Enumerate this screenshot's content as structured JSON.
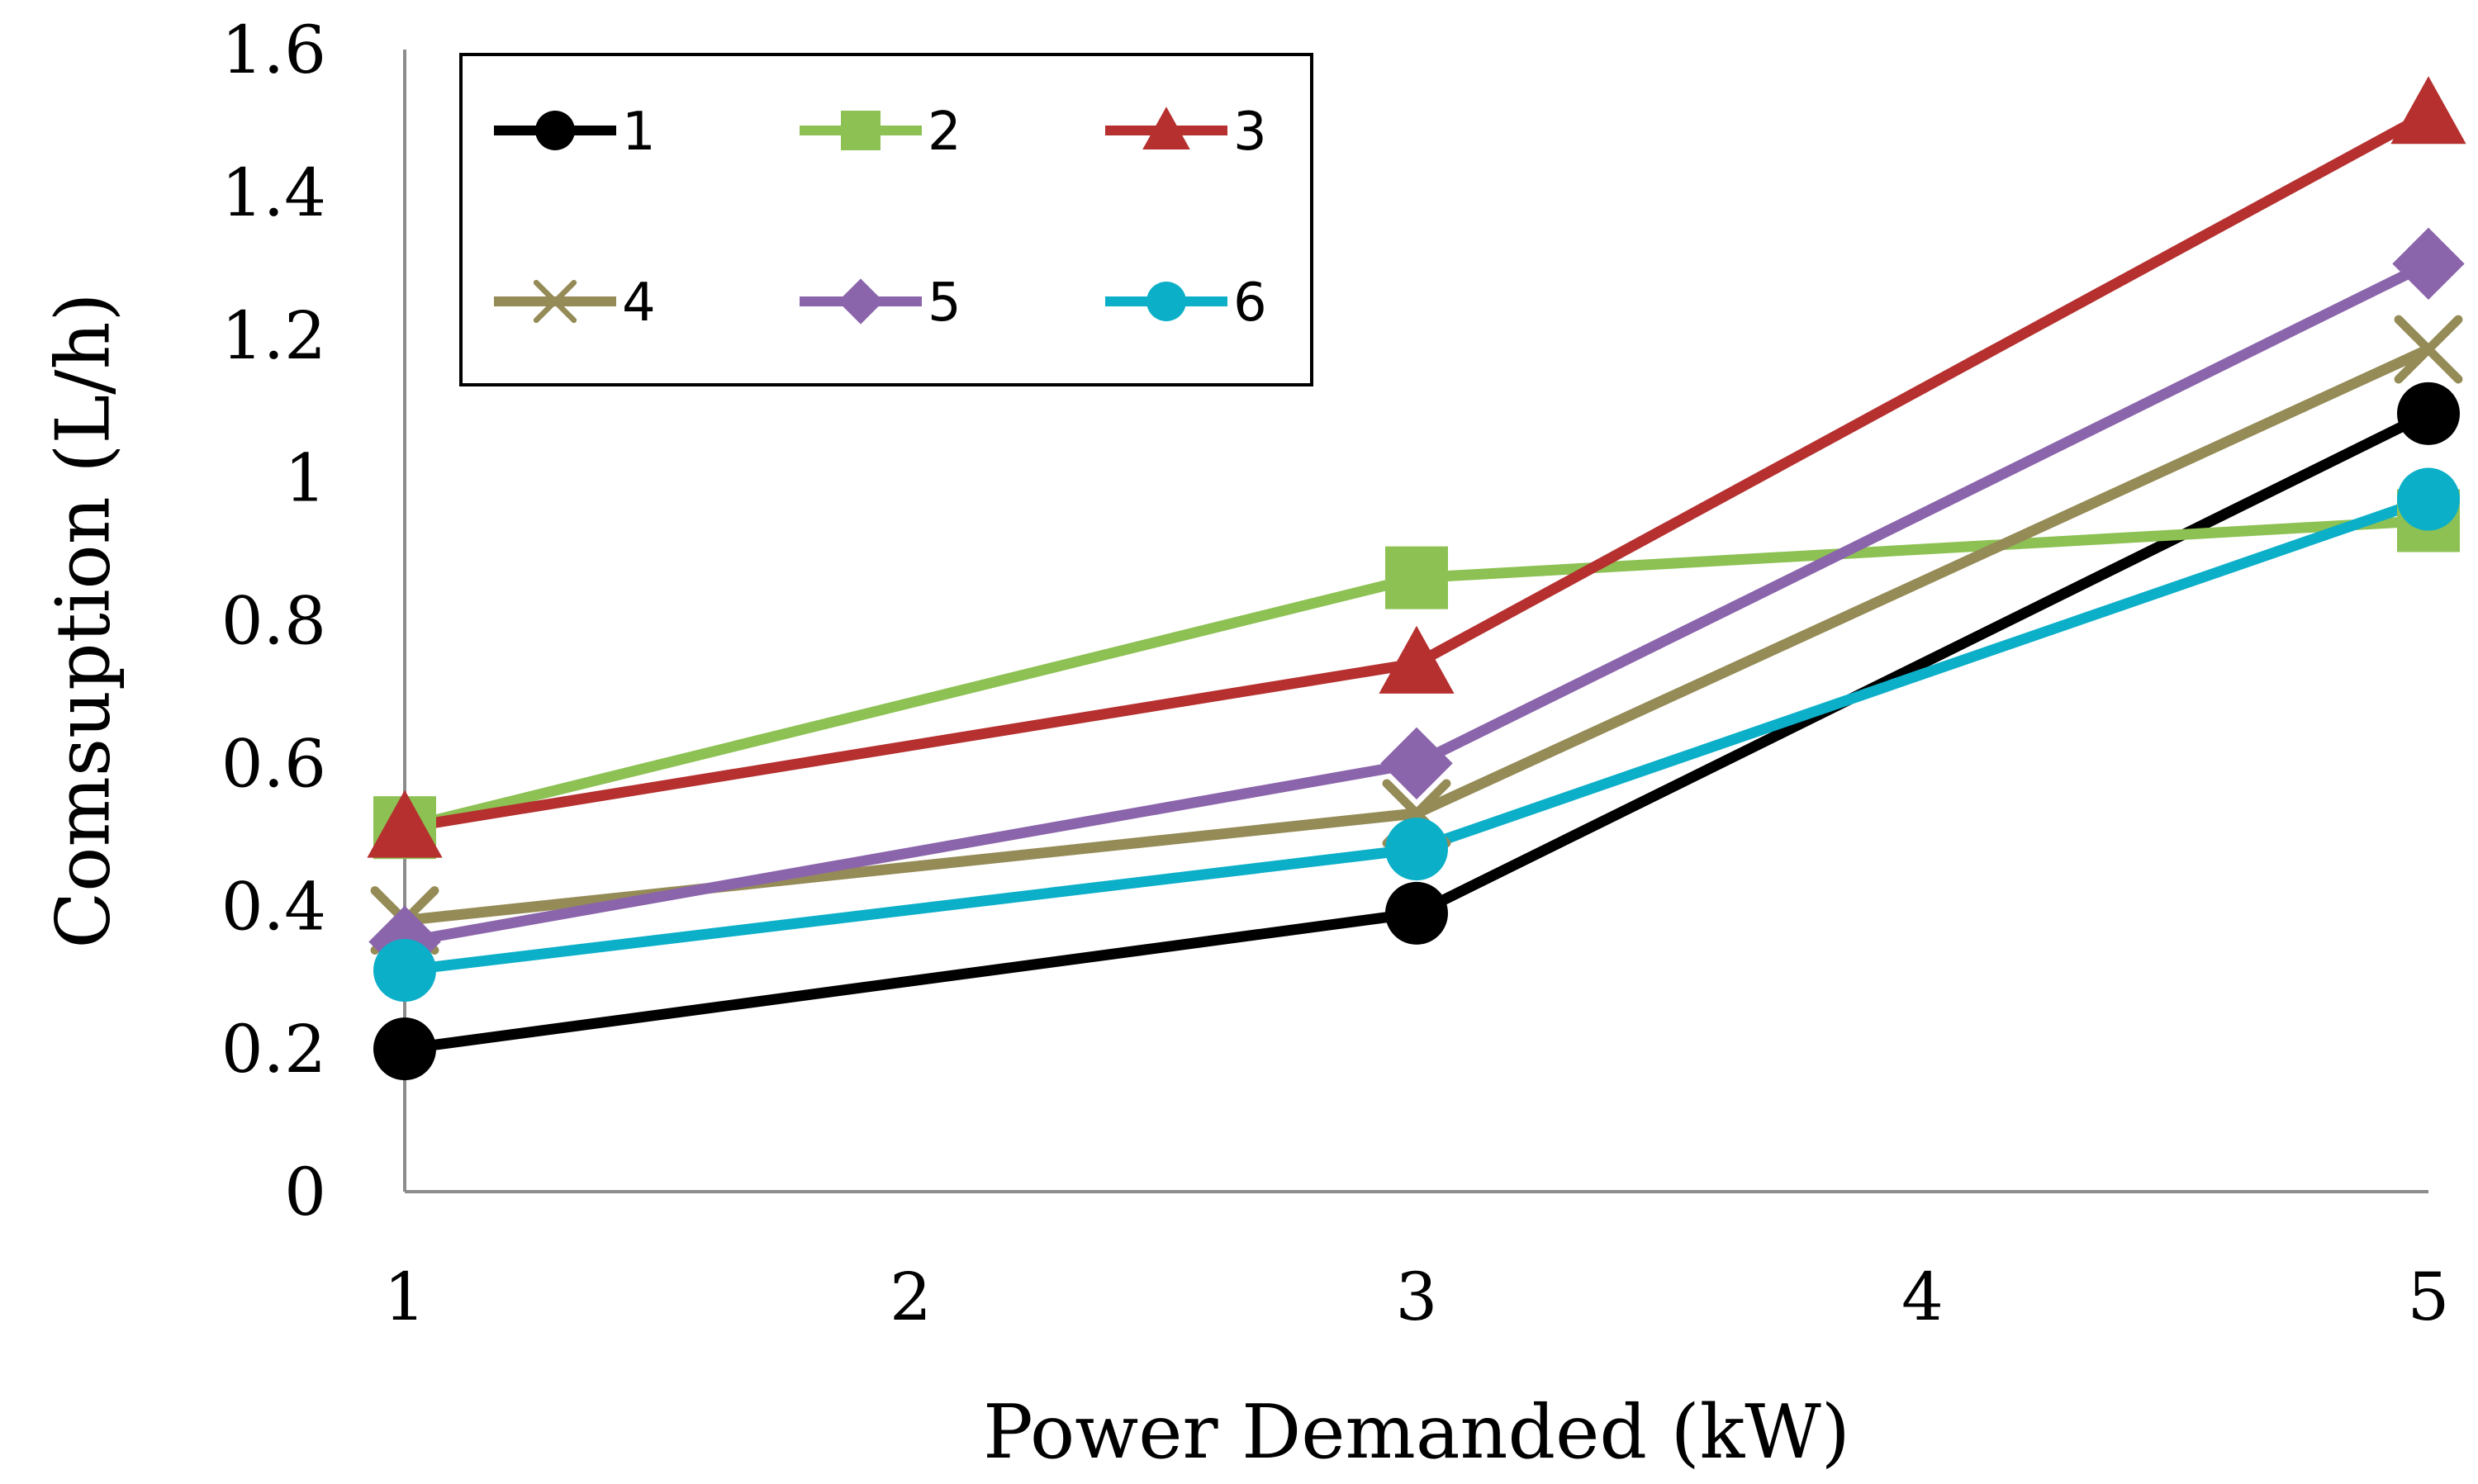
{
  "chart_data": {
    "type": "line",
    "title": "",
    "xlabel": "Power Demanded (kW)",
    "ylabel": "Comsuption (L/h)",
    "xlim": [
      1,
      5
    ],
    "ylim": [
      0,
      1.6
    ],
    "xticks": [
      1,
      2,
      3,
      4,
      5
    ],
    "yticks": [
      {
        "value": 0,
        "label": "0"
      },
      {
        "value": 0.2,
        "label": "0.2"
      },
      {
        "value": 0.4,
        "label": "0.4"
      },
      {
        "value": 0.6,
        "label": "0.6"
      },
      {
        "value": 0.8,
        "label": "0.8"
      },
      {
        "value": 1.0,
        "label": "1"
      },
      {
        "value": 1.2,
        "label": "1.2"
      },
      {
        "value": 1.4,
        "label": "1.4"
      },
      {
        "value": 1.6,
        "label": "1.6"
      }
    ],
    "grid": false,
    "legend_position": "top-left",
    "x": [
      1,
      3,
      5
    ],
    "series": [
      {
        "name": "1",
        "color": "#000000",
        "marker": "circle",
        "values": [
          0.2,
          0.39,
          1.09
        ]
      },
      {
        "name": "2",
        "color": "#8DC153",
        "marker": "square",
        "values": [
          0.51,
          0.86,
          0.94
        ]
      },
      {
        "name": "3",
        "color": "#B5302F",
        "marker": "triangle",
        "values": [
          0.51,
          0.74,
          1.51
        ]
      },
      {
        "name": "4",
        "color": "#958B57",
        "marker": "x",
        "values": [
          0.38,
          0.53,
          1.18
        ]
      },
      {
        "name": "5",
        "color": "#8B65AB",
        "marker": "diamond",
        "values": [
          0.35,
          0.6,
          1.3
        ]
      },
      {
        "name": "6",
        "color": "#0BAFC8",
        "marker": "circle",
        "values": [
          0.31,
          0.48,
          0.97
        ]
      }
    ]
  }
}
